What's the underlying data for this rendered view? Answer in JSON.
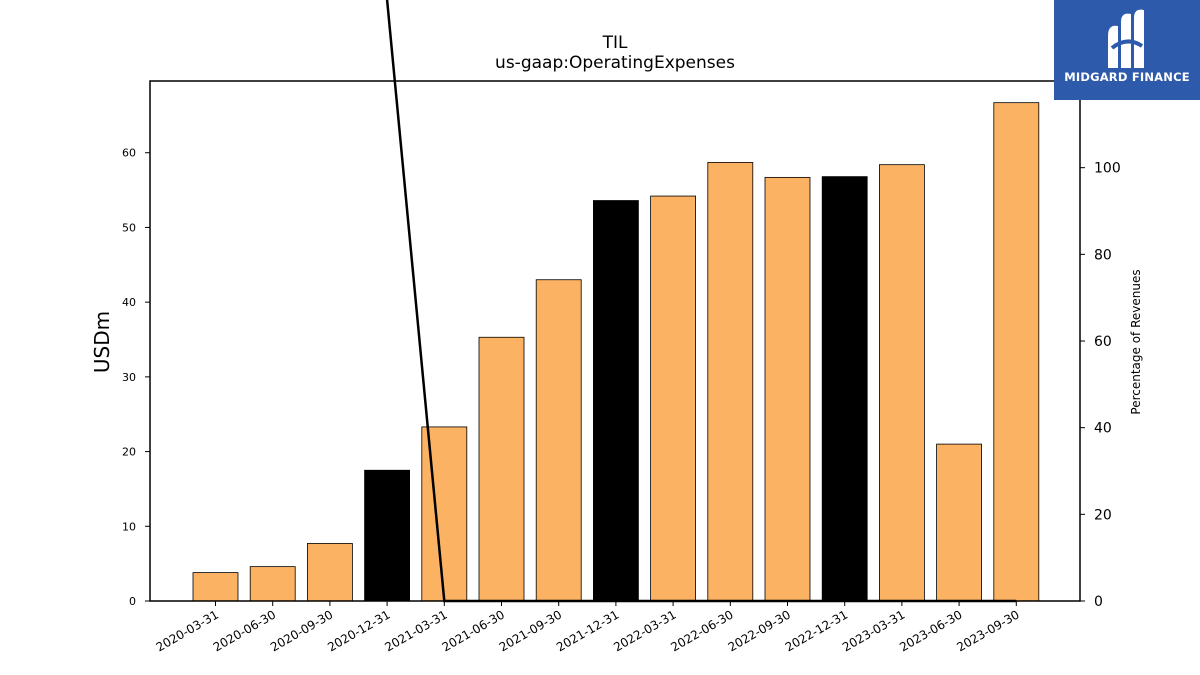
{
  "chart_data": {
    "type": "bar",
    "title": "TIL",
    "subtitle": "us-gaap:OperatingExpenses",
    "ylabel": "USDm",
    "y2label": "Percentage of Revenues",
    "categories": [
      "2020-03-31",
      "2020-06-30",
      "2020-09-30",
      "2020-12-31",
      "2021-03-31",
      "2021-06-30",
      "2021-09-30",
      "2021-12-31",
      "2022-03-31",
      "2022-06-30",
      "2022-09-30",
      "2022-12-31",
      "2023-03-31",
      "2023-06-30",
      "2023-09-30"
    ],
    "series": [
      {
        "values": [
          3.8,
          4.6,
          7.7,
          17.5,
          23.3,
          35.3,
          43.0,
          53.6,
          54.2,
          58.7,
          56.7,
          56.8,
          58.4,
          21.0,
          66.7
        ],
        "bar_colors": [
          "#fbb263",
          "#fbb263",
          "#fbb263",
          "#000000",
          "#fbb263",
          "#fbb263",
          "#fbb263",
          "#000000",
          "#fbb263",
          "#fbb263",
          "#fbb263",
          "#000000",
          "#fbb263",
          "#fbb263",
          "#fbb263"
        ]
      }
    ],
    "secondary_line": {
      "values": [
        null,
        null,
        null,
        160,
        0,
        0,
        0,
        0,
        0,
        0,
        0,
        0,
        0,
        0,
        0
      ],
      "color": "#000000"
    },
    "ylim": [
      0,
      69.6
    ],
    "y2lim": [
      0,
      120
    ],
    "yticks": [
      0,
      10,
      20,
      30,
      40,
      50,
      60
    ],
    "y2ticks": [
      0,
      20,
      40,
      60,
      80,
      100
    ],
    "grid": false,
    "legend": "none"
  },
  "logo": {
    "text": "MIDGARD FINANCE",
    "background": "#2e5aac"
  }
}
